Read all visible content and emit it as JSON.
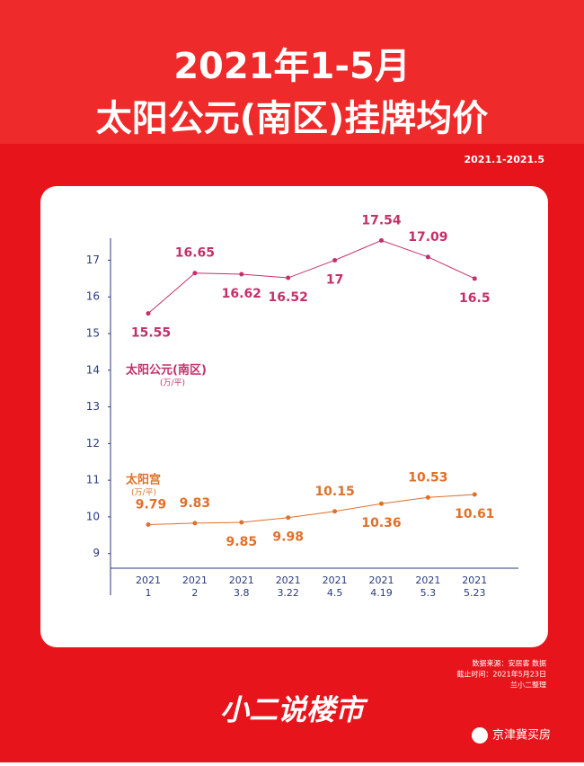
{
  "chart_data": {
    "type": "line",
    "title": "2021年1-5月",
    "title2": "太阳公元(南区)挂牌均价",
    "subtitle": "2021.1-2021.5",
    "categories": [
      [
        "2021",
        "1"
      ],
      [
        "2021",
        "2"
      ],
      [
        "2021",
        "3.8"
      ],
      [
        "2021",
        "3.22"
      ],
      [
        "2021",
        "4.5"
      ],
      [
        "2021",
        "4.19"
      ],
      [
        "2021",
        "5.3"
      ],
      [
        "2021",
        "5.23"
      ]
    ],
    "unit": "(万/平)",
    "series": [
      {
        "name": "太阳公元(南区)",
        "color": "#c4306a",
        "values": [
          15.55,
          16.65,
          16.62,
          16.52,
          17,
          17.54,
          17.09,
          16.5
        ]
      },
      {
        "name": "太阳宫",
        "color": "#e0702a",
        "values": [
          9.79,
          9.83,
          9.85,
          9.98,
          10.15,
          10.36,
          10.53,
          10.61
        ]
      }
    ],
    "ylim": [
      8.6,
      17.6
    ],
    "yticks": [
      9,
      10,
      11,
      12,
      13,
      14,
      15,
      16,
      17
    ],
    "source": [
      "数据来源：安居客 数据",
      "截止时间：2021年5月23日",
      "兰小二整理"
    ],
    "logo": "小二说楼市",
    "account": "京津冀买房"
  }
}
